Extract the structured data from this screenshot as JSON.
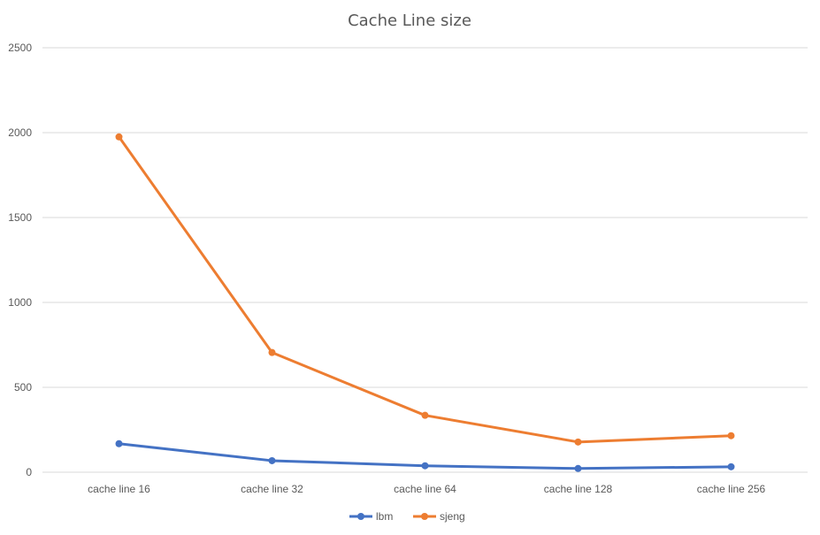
{
  "chart_data": {
    "type": "line",
    "title": "Cache Line size",
    "xlabel": "",
    "ylabel": "",
    "categories": [
      "cache line 16",
      "cache line 32",
      "cache line 64",
      "cache line 128",
      "cache line 256"
    ],
    "ylim": [
      0,
      2500
    ],
    "yticks": [
      0,
      500,
      1000,
      1500,
      2000,
      2500
    ],
    "grid": true,
    "legend_position": "bottom",
    "series": [
      {
        "name": "lbm",
        "color": "#4472c4",
        "values": [
          168,
          68,
          38,
          22,
          32
        ]
      },
      {
        "name": "sjeng",
        "color": "#ed7d31",
        "values": [
          1975,
          705,
          335,
          178,
          215
        ]
      }
    ]
  }
}
